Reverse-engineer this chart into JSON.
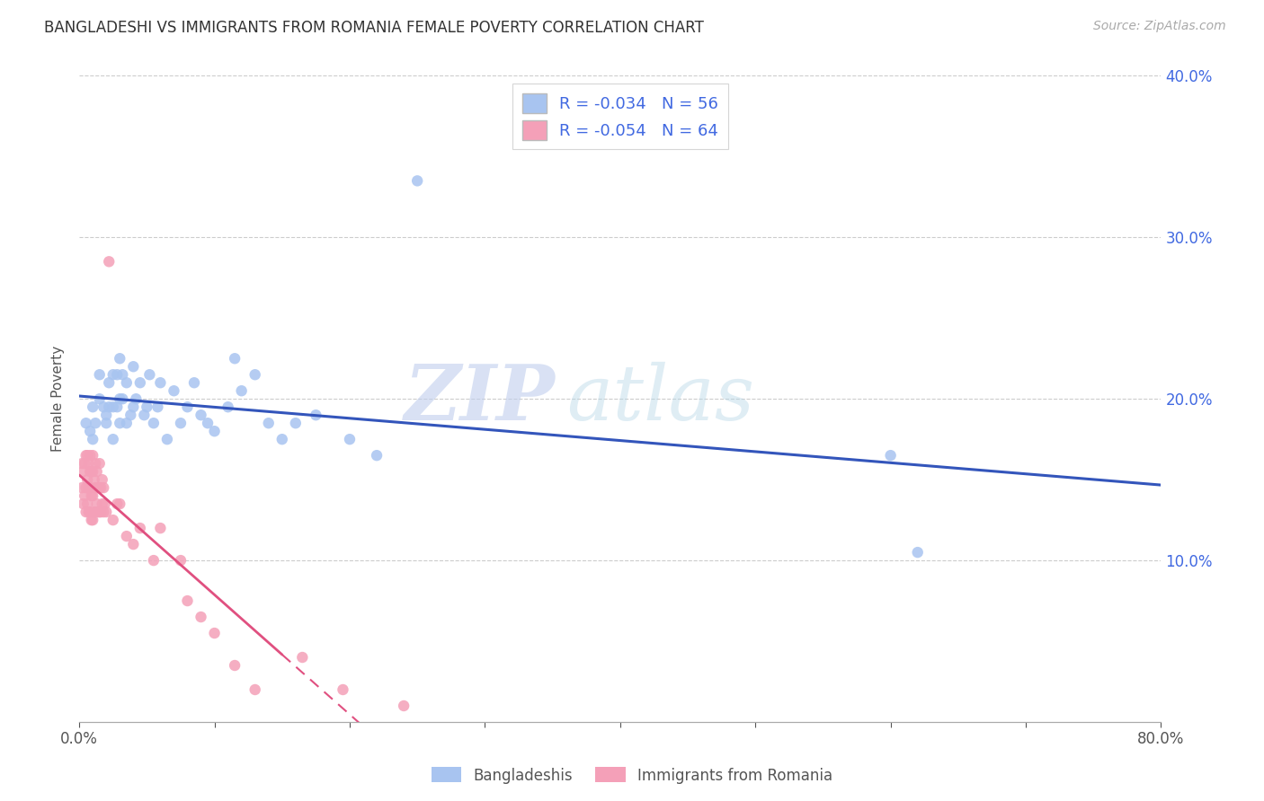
{
  "title": "BANGLADESHI VS IMMIGRANTS FROM ROMANIA FEMALE POVERTY CORRELATION CHART",
  "source": "Source: ZipAtlas.com",
  "ylabel": "Female Poverty",
  "xlim": [
    0,
    0.8
  ],
  "ylim": [
    0,
    0.4
  ],
  "blue_R": "-0.034",
  "blue_N": "56",
  "pink_R": "-0.054",
  "pink_N": "64",
  "blue_color": "#A8C4F0",
  "pink_color": "#F4A0B8",
  "blue_line_color": "#3355BB",
  "pink_line_color": "#E05080",
  "watermark_zip": "ZIP",
  "watermark_atlas": "atlas",
  "legend_entries": [
    "Bangladeshis",
    "Immigrants from Romania"
  ],
  "blue_scatter_x": [
    0.005,
    0.008,
    0.01,
    0.01,
    0.012,
    0.015,
    0.015,
    0.018,
    0.02,
    0.02,
    0.022,
    0.022,
    0.025,
    0.025,
    0.025,
    0.028,
    0.028,
    0.03,
    0.03,
    0.03,
    0.032,
    0.032,
    0.035,
    0.035,
    0.038,
    0.04,
    0.04,
    0.042,
    0.045,
    0.048,
    0.05,
    0.052,
    0.055,
    0.058,
    0.06,
    0.065,
    0.07,
    0.075,
    0.08,
    0.085,
    0.09,
    0.095,
    0.1,
    0.11,
    0.115,
    0.12,
    0.13,
    0.14,
    0.15,
    0.16,
    0.175,
    0.2,
    0.22,
    0.25,
    0.6,
    0.62
  ],
  "blue_scatter_y": [
    0.185,
    0.18,
    0.175,
    0.195,
    0.185,
    0.2,
    0.215,
    0.195,
    0.185,
    0.19,
    0.195,
    0.21,
    0.195,
    0.215,
    0.175,
    0.195,
    0.215,
    0.185,
    0.2,
    0.225,
    0.2,
    0.215,
    0.185,
    0.21,
    0.19,
    0.195,
    0.22,
    0.2,
    0.21,
    0.19,
    0.195,
    0.215,
    0.185,
    0.195,
    0.21,
    0.175,
    0.205,
    0.185,
    0.195,
    0.21,
    0.19,
    0.185,
    0.18,
    0.195,
    0.225,
    0.205,
    0.215,
    0.185,
    0.175,
    0.185,
    0.19,
    0.175,
    0.165,
    0.335,
    0.165,
    0.105
  ],
  "pink_scatter_x": [
    0.002,
    0.002,
    0.003,
    0.003,
    0.004,
    0.004,
    0.005,
    0.005,
    0.005,
    0.006,
    0.006,
    0.006,
    0.007,
    0.007,
    0.007,
    0.008,
    0.008,
    0.008,
    0.008,
    0.009,
    0.009,
    0.009,
    0.01,
    0.01,
    0.01,
    0.01,
    0.011,
    0.011,
    0.012,
    0.012,
    0.012,
    0.013,
    0.013,
    0.014,
    0.014,
    0.015,
    0.015,
    0.015,
    0.016,
    0.016,
    0.017,
    0.017,
    0.018,
    0.018,
    0.019,
    0.02,
    0.022,
    0.025,
    0.028,
    0.03,
    0.035,
    0.04,
    0.045,
    0.055,
    0.06,
    0.075,
    0.08,
    0.09,
    0.1,
    0.115,
    0.13,
    0.165,
    0.195,
    0.24
  ],
  "pink_scatter_y": [
    0.145,
    0.16,
    0.135,
    0.155,
    0.14,
    0.16,
    0.13,
    0.145,
    0.165,
    0.135,
    0.15,
    0.165,
    0.13,
    0.145,
    0.16,
    0.13,
    0.145,
    0.155,
    0.165,
    0.125,
    0.14,
    0.155,
    0.125,
    0.14,
    0.155,
    0.165,
    0.13,
    0.15,
    0.13,
    0.145,
    0.16,
    0.135,
    0.155,
    0.13,
    0.145,
    0.13,
    0.145,
    0.16,
    0.13,
    0.145,
    0.135,
    0.15,
    0.13,
    0.145,
    0.135,
    0.13,
    0.285,
    0.125,
    0.135,
    0.135,
    0.115,
    0.11,
    0.12,
    0.1,
    0.12,
    0.1,
    0.075,
    0.065,
    0.055,
    0.035,
    0.02,
    0.04,
    0.02,
    0.01
  ]
}
